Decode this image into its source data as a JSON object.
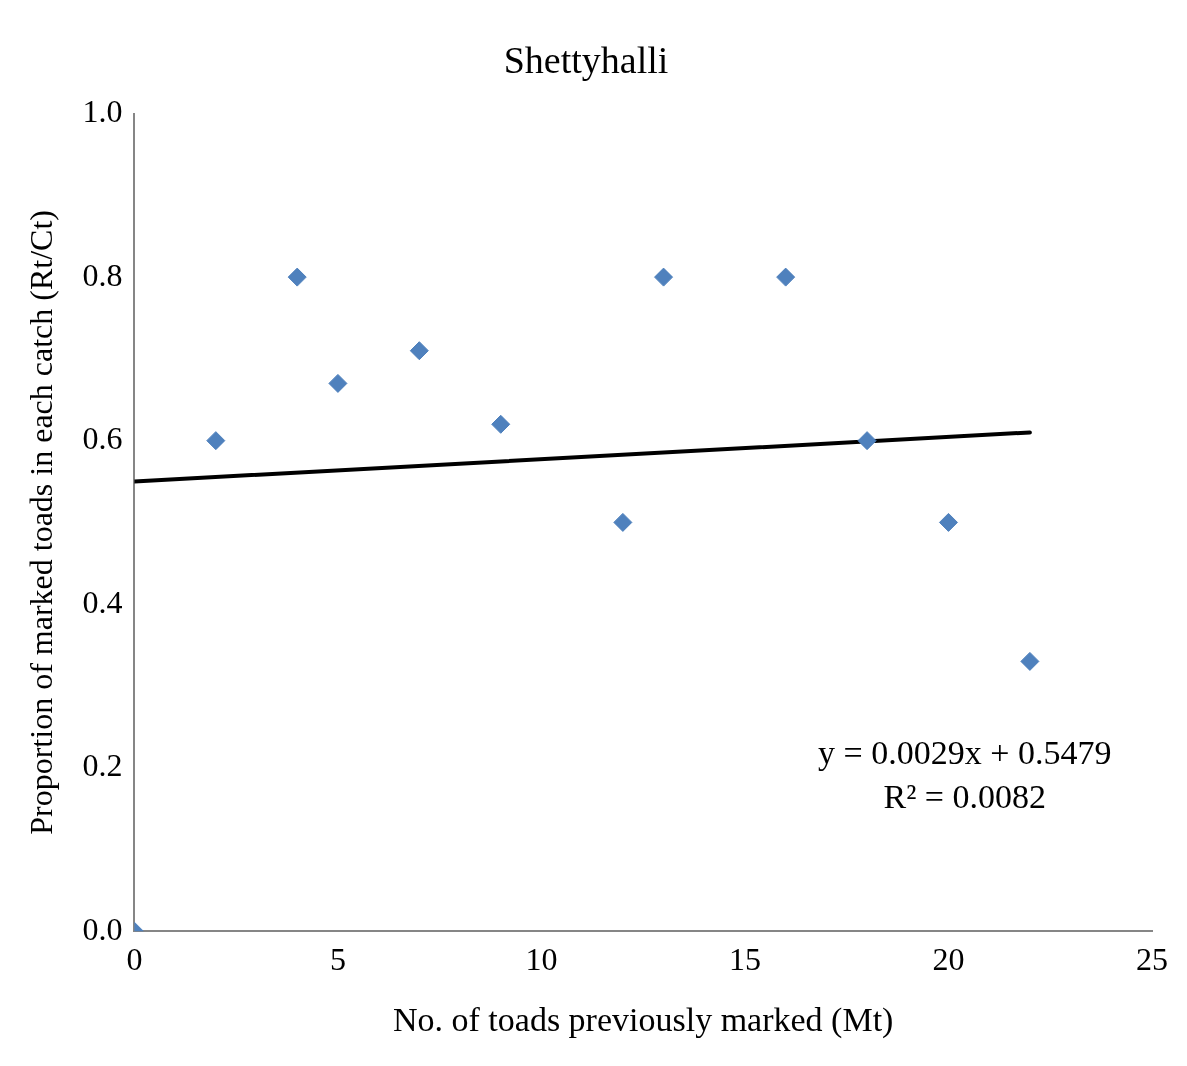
{
  "chart_data": {
    "type": "scatter",
    "title": "Shettyhalli",
    "xlabel": "No. of toads previously marked (Mt)",
    "ylabel": "Proportion of marked toads in each catch (Rt/Ct)",
    "x": [
      0,
      2,
      4,
      5,
      7,
      9,
      12,
      13,
      16,
      18,
      20,
      22
    ],
    "series": [
      {
        "color": "#4f81bd",
        "values": [
          0,
          0.6,
          0.8,
          0.67,
          0.71,
          0.62,
          0.5,
          0.8,
          0.8,
          0.6,
          0.5,
          0.33
        ],
        "marker": "diamond"
      },
      {
        "type": "line",
        "color": "#000000",
        "x": [
          0,
          22
        ],
        "values": [
          0.55,
          0.61
        ],
        "marker": "none",
        "line_style": "solid"
      }
    ],
    "xlim": [
      0,
      25
    ],
    "xticks": [
      0,
      5,
      10,
      15,
      20,
      25
    ],
    "ylim": [
      0,
      1
    ],
    "yticks": [
      {
        "value": 0,
        "label": "0.0"
      },
      {
        "value": 0.2,
        "label": "0.2"
      },
      {
        "value": 0.4,
        "label": "0.4"
      },
      {
        "value": 0.6,
        "label": "0.6"
      },
      {
        "value": 0.8,
        "label": "0.8"
      },
      {
        "value": 1,
        "label": "1.0"
      }
    ],
    "grid": false,
    "legend": false,
    "annotations": [
      "y = 0.0029x + 0.5479",
      "R² = 0.0082"
    ]
  }
}
